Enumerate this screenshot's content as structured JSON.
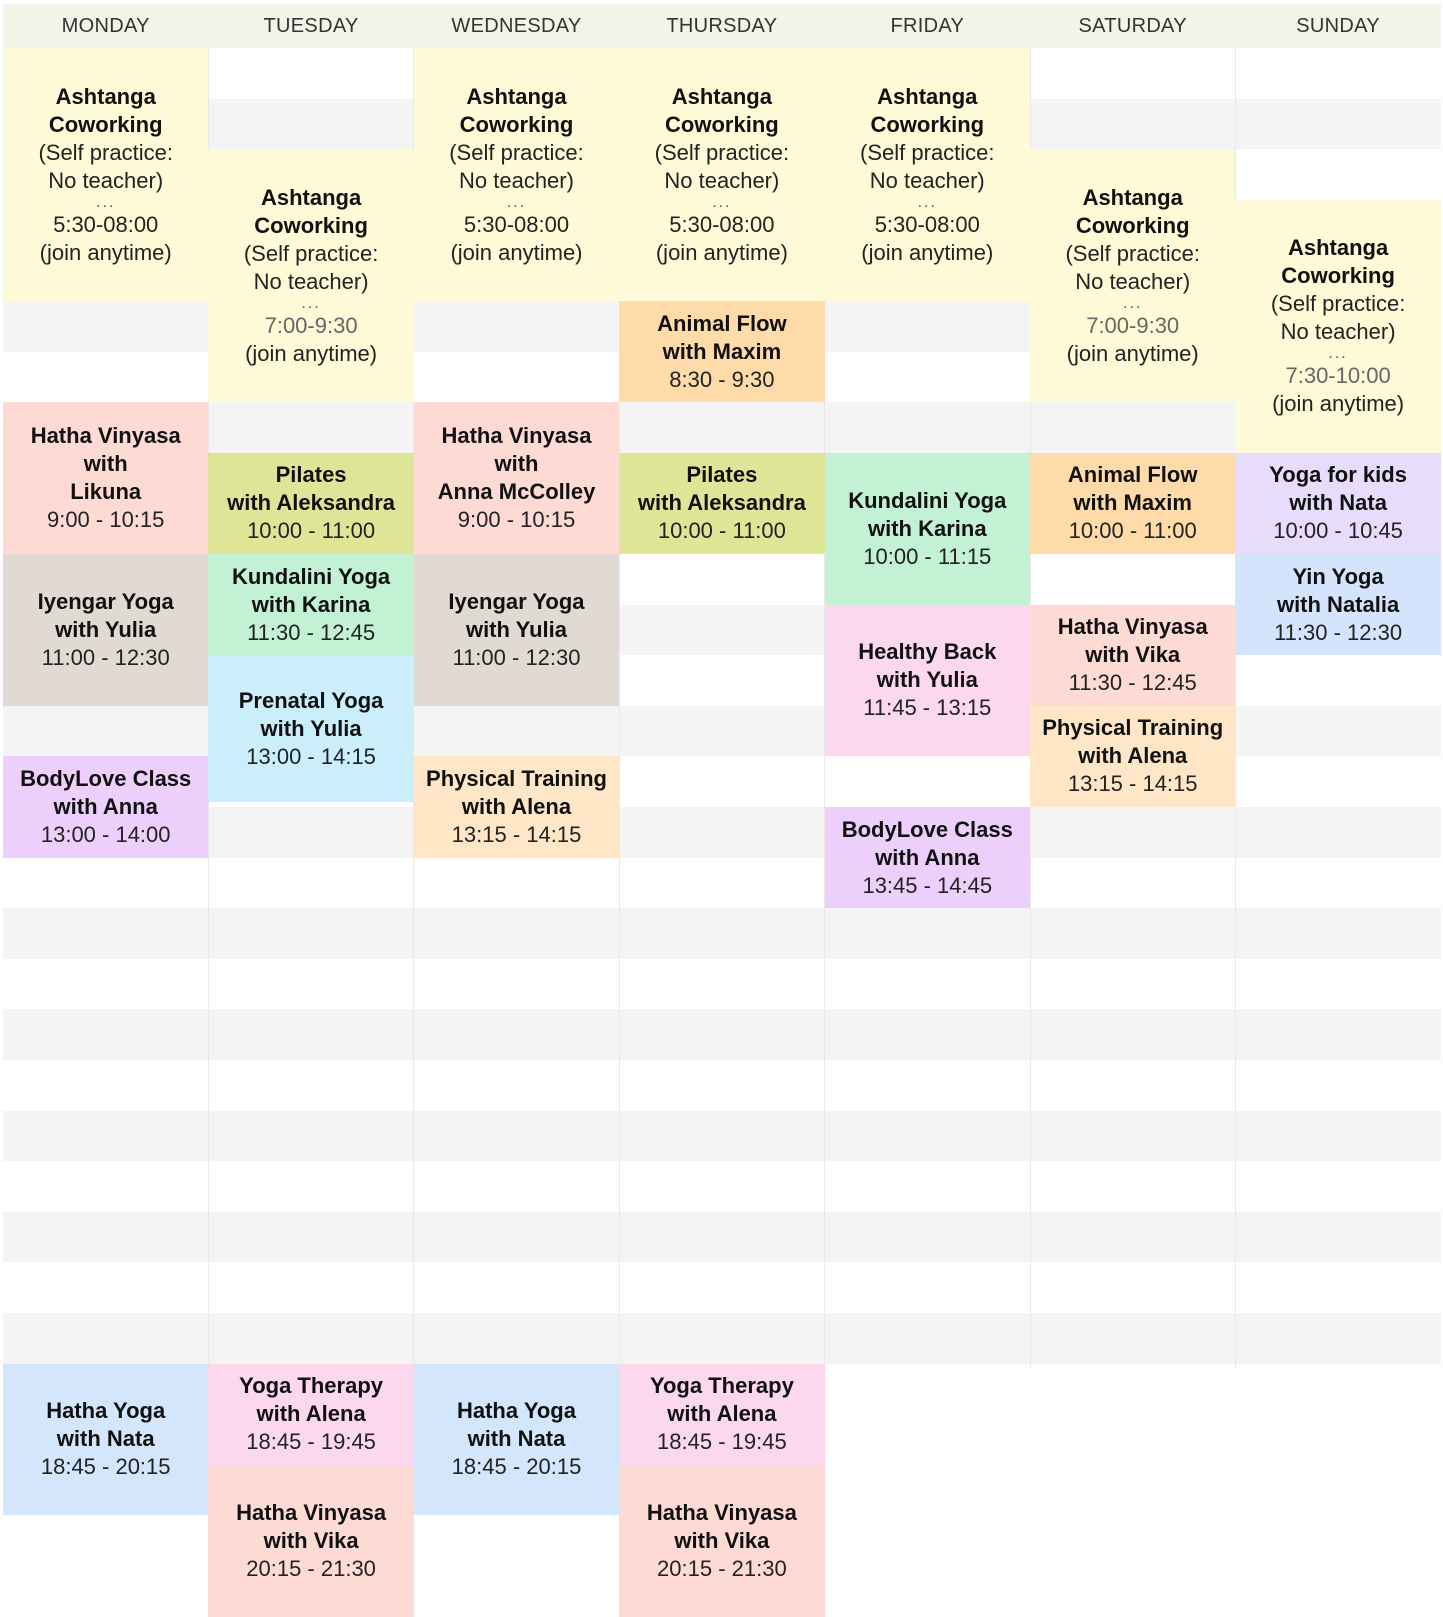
{
  "days": [
    "MONDAY",
    "TUESDAY",
    "WEDNESDAY",
    "THURSDAY",
    "FRIDAY",
    "SATURDAY",
    "SUNDAY"
  ],
  "colors": {
    "header_bg": "#f4f3e8",
    "row_alt": "#f4f4f4",
    "row_plain": "#ffffff",
    "ashtanga": "#fef9d6",
    "hatha_vinyasa": "#fddbd4",
    "iyengar": "#e0dad2",
    "pilates": "#dfe596",
    "kundalini": "#c2f1d4",
    "prenatal": "#cbeefb",
    "bodylove": "#ecd0fb",
    "physical": "#ffe6c6",
    "animal_flow": "#ffdba9",
    "healthy_back": "#fbd8ee",
    "yoga_kids": "#e6dcfc",
    "yin": "#d5e4fd",
    "hatha_yoga": "#d3e6fb",
    "yoga_therapy": "#fbd8ee"
  },
  "events": [
    {
      "id": "mon-ashtanga",
      "day": 0,
      "start": "5:30",
      "end": "8:00",
      "color": "ashtanga",
      "title": "Ashtanga\nCoworking",
      "note": "(Self practice:\nNo teacher)",
      "dots": "...",
      "time": "5:30-08:00",
      "time_muted": false,
      "extra": "(join anytime)"
    },
    {
      "id": "mon-hatha-vinyasa",
      "day": 0,
      "start": "9:00",
      "end": "10:30",
      "color": "hatha_vinyasa",
      "title": "Hatha Vinyasa\nwith\nLikuna",
      "time": "9:00 - 10:15"
    },
    {
      "id": "mon-iyengar",
      "day": 0,
      "start": "10:30",
      "end": "12:00",
      "color": "iyengar",
      "title": "Iyengar Yoga\nwith Yulia",
      "time": "11:00 - 12:30"
    },
    {
      "id": "mon-bodylove",
      "day": 0,
      "start": "12:30",
      "end": "13:30",
      "color": "bodylove",
      "title": "BodyLove Class\nwith Anna",
      "time": "13:00 - 14:00"
    },
    {
      "id": "mon-hatha-yoga",
      "day": 0,
      "start": "18:30",
      "end": "20:00",
      "color": "hatha_yoga",
      "title": "Hatha Yoga\nwith Nata",
      "time": "18:45 - 20:15"
    },
    {
      "id": "tue-ashtanga",
      "day": 1,
      "start": "6:30",
      "end": "9:00",
      "color": "ashtanga",
      "title": "Ashtanga\nCoworking",
      "note": "(Self practice:\nNo teacher)",
      "dots": "...",
      "time": "7:00-9:30",
      "time_muted": true,
      "extra": "(join anytime)"
    },
    {
      "id": "tue-pilates",
      "day": 1,
      "start": "9:30",
      "end": "10:30",
      "color": "pilates",
      "title": "Pilates\nwith Aleksandra",
      "time": "10:00 - 11:00"
    },
    {
      "id": "tue-kundalini",
      "day": 1,
      "start": "10:30",
      "end": "11:30",
      "color": "kundalini",
      "title": "Kundalini Yoga\nwith Karina",
      "time": "11:30 - 12:45"
    },
    {
      "id": "tue-prenatal",
      "day": 1,
      "start": "11:30",
      "end": "12:57",
      "color": "prenatal",
      "title": "Prenatal Yoga\nwith Yulia",
      "time": "13:00 - 14:15"
    },
    {
      "id": "tue-yoga-therapy",
      "day": 1,
      "start": "18:30",
      "end": "19:30",
      "color": "yoga_therapy",
      "title": "Yoga Therapy\nwith Alena",
      "time": "18:45 - 19:45"
    },
    {
      "id": "tue-hatha-vinyasa",
      "day": 1,
      "start": "19:30",
      "end": "21:00",
      "color": "hatha_vinyasa",
      "title": "Hatha Vinyasa\nwith Vika",
      "time": "20:15 - 21:30"
    },
    {
      "id": "wed-ashtanga",
      "day": 2,
      "start": "5:30",
      "end": "8:00",
      "color": "ashtanga",
      "title": "Ashtanga\nCoworking",
      "note": "(Self practice:\nNo teacher)",
      "dots": "...",
      "time": "5:30-08:00",
      "time_muted": false,
      "extra": "(join anytime)"
    },
    {
      "id": "wed-hatha-vinyasa",
      "day": 2,
      "start": "9:00",
      "end": "10:30",
      "color": "hatha_vinyasa",
      "title": "Hatha Vinyasa\nwith\nAnna McColley",
      "time": "9:00 - 10:15"
    },
    {
      "id": "wed-iyengar",
      "day": 2,
      "start": "10:30",
      "end": "12:00",
      "color": "iyengar",
      "title": "Iyengar Yoga\nwith Yulia",
      "time": "11:00 - 12:30"
    },
    {
      "id": "wed-physical",
      "day": 2,
      "start": "12:30",
      "end": "13:30",
      "color": "physical",
      "title": "Physical Training\nwith Alena",
      "time": "13:15 - 14:15"
    },
    {
      "id": "wed-hatha-yoga",
      "day": 2,
      "start": "18:30",
      "end": "20:00",
      "color": "hatha_yoga",
      "title": "Hatha Yoga\nwith Nata",
      "time": "18:45 - 20:15"
    },
    {
      "id": "thu-ashtanga",
      "day": 3,
      "start": "5:30",
      "end": "8:00",
      "color": "ashtanga",
      "title": "Ashtanga\nCoworking",
      "note": "(Self practice:\nNo teacher)",
      "dots": "...",
      "time": "5:30-08:00",
      "time_muted": false,
      "extra": "(join anytime)"
    },
    {
      "id": "thu-animal-flow",
      "day": 3,
      "start": "8:00",
      "end": "9:00",
      "color": "animal_flow",
      "title": "Animal Flow\nwith Maxim",
      "time": "8:30 - 9:30"
    },
    {
      "id": "thu-pilates",
      "day": 3,
      "start": "9:30",
      "end": "10:30",
      "color": "pilates",
      "title": "Pilates\nwith Aleksandra",
      "time": "10:00 - 11:00"
    },
    {
      "id": "thu-yoga-therapy",
      "day": 3,
      "start": "18:30",
      "end": "19:30",
      "color": "yoga_therapy",
      "title": "Yoga Therapy\nwith Alena",
      "time": "18:45 - 19:45"
    },
    {
      "id": "thu-hatha-vinyasa",
      "day": 3,
      "start": "19:30",
      "end": "21:00",
      "color": "hatha_vinyasa",
      "title": "Hatha Vinyasa\nwith Vika",
      "time": "20:15 - 21:30"
    },
    {
      "id": "fri-ashtanga",
      "day": 4,
      "start": "5:30",
      "end": "8:00",
      "color": "ashtanga",
      "title": "Ashtanga\nCoworking",
      "note": "(Self practice:\nNo teacher)",
      "dots": "...",
      "time": "5:30-08:00",
      "time_muted": false,
      "extra": "(join anytime)"
    },
    {
      "id": "fri-kundalini",
      "day": 4,
      "start": "9:30",
      "end": "11:00",
      "color": "kundalini",
      "title": "Kundalini Yoga\nwith Karina",
      "time": "10:00 - 11:15"
    },
    {
      "id": "fri-healthy-back",
      "day": 4,
      "start": "11:00",
      "end": "12:30",
      "color": "healthy_back",
      "title": "Healthy Back\nwith Yulia",
      "time": "11:45 - 13:15"
    },
    {
      "id": "fri-bodylove",
      "day": 4,
      "start": "13:00",
      "end": "14:00",
      "color": "bodylove",
      "title": "BodyLove Class\nwith Anna",
      "time": "13:45 - 14:45"
    },
    {
      "id": "sat-ashtanga",
      "day": 5,
      "start": "6:30",
      "end": "9:00",
      "color": "ashtanga",
      "title": "Ashtanga\nCoworking",
      "note": "(Self practice:\nNo teacher)",
      "dots": "...",
      "time": "7:00-9:30",
      "time_muted": true,
      "extra": "(join anytime)"
    },
    {
      "id": "sat-animal-flow",
      "day": 5,
      "start": "9:30",
      "end": "10:30",
      "color": "animal_flow",
      "title": "Animal Flow\nwith Maxim",
      "time": "10:00 - 11:00"
    },
    {
      "id": "sat-hatha-vinyasa",
      "day": 5,
      "start": "11:00",
      "end": "12:00",
      "color": "hatha_vinyasa",
      "title": "Hatha Vinyasa\nwith Vika",
      "time": "11:30 - 12:45"
    },
    {
      "id": "sat-physical",
      "day": 5,
      "start": "12:00",
      "end": "13:00",
      "color": "physical",
      "title": "Physical Training\nwith Alena",
      "time": "13:15 - 14:15"
    },
    {
      "id": "sun-ashtanga",
      "day": 6,
      "start": "7:00",
      "end": "9:30",
      "color": "ashtanga",
      "title": "Ashtanga\nCoworking",
      "note": "(Self practice:\nNo teacher)",
      "dots": "...",
      "time": "7:30-10:00",
      "time_muted": true,
      "extra": "(join anytime)"
    },
    {
      "id": "sun-yoga-kids",
      "day": 6,
      "start": "9:30",
      "end": "10:30",
      "color": "yoga_kids",
      "title": "Yoga for kids\nwith Nata",
      "time": "10:00 - 10:45"
    },
    {
      "id": "sun-yin",
      "day": 6,
      "start": "10:30",
      "end": "11:30",
      "color": "yin",
      "title": "Yin Yoga\nwith Natalia",
      "time": "11:30 - 12:30"
    }
  ]
}
